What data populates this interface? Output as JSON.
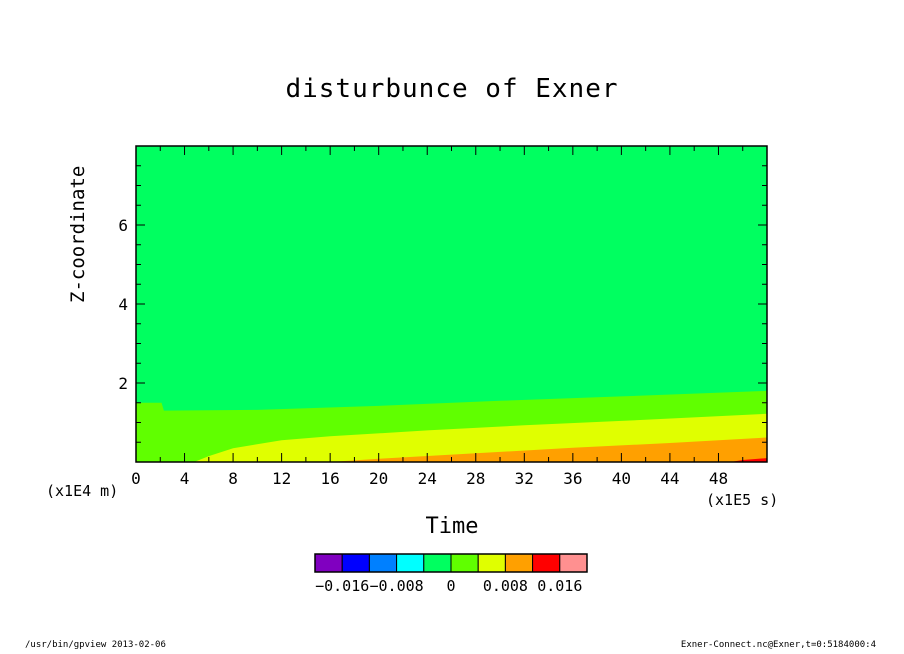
{
  "chart_data": {
    "type": "heatmap",
    "title": "disturbunce of Exner",
    "xlabel": "Time",
    "ylabel": "Z-coordinate",
    "x_scale_note": "(x1E5 s)",
    "y_scale_note": "(x1E4 m)",
    "xlim": [
      0,
      52
    ],
    "ylim": [
      0,
      8
    ],
    "x_ticks": [
      "0",
      "4",
      "8",
      "12",
      "16",
      "20",
      "24",
      "28",
      "32",
      "36",
      "40",
      "44",
      "48"
    ],
    "y_ticks": [
      "2",
      "4",
      "6"
    ],
    "colorbar": {
      "colors": [
        "#8000c0",
        "#0000ff",
        "#0080ff",
        "#00ffff",
        "#00ff60",
        "#60ff00",
        "#e0ff00",
        "#ffa000",
        "#ff0000",
        "#ff9090"
      ],
      "labels": [
        "-0.016",
        "-0.008",
        "0",
        "0.008",
        "0.016"
      ],
      "levels": [
        -0.02,
        -0.016,
        -0.012,
        -0.008,
        -0.004,
        0,
        0.004,
        0.008,
        0.012,
        0.016,
        0.02
      ]
    },
    "regions": [
      {
        "range": "[-0.004, 0)",
        "color": "#00ff60",
        "fill": "background and upper domain"
      },
      {
        "range": "[0, 0.004)",
        "color": "#60ff00",
        "boundary": [
          [
            0,
            1.5
          ],
          [
            2.1,
            1.5
          ],
          [
            2.3,
            1.3
          ],
          [
            10,
            1.32
          ],
          [
            20,
            1.42
          ],
          [
            30,
            1.55
          ],
          [
            40,
            1.66
          ],
          [
            52,
            1.8
          ]
        ]
      },
      {
        "range": "[0.004, 0.008)",
        "color": "#e0ff00",
        "boundary": [
          [
            4.8,
            0
          ],
          [
            6,
            0.15
          ],
          [
            8,
            0.35
          ],
          [
            12,
            0.55
          ],
          [
            16,
            0.65
          ],
          [
            24,
            0.8
          ],
          [
            32,
            0.93
          ],
          [
            40,
            1.04
          ],
          [
            52,
            1.22
          ]
        ]
      },
      {
        "range": "[0.008, 0.012)",
        "color": "#ffa000",
        "boundary": [
          [
            16,
            0
          ],
          [
            20,
            0.08
          ],
          [
            28,
            0.22
          ],
          [
            36,
            0.36
          ],
          [
            44,
            0.48
          ],
          [
            52,
            0.62
          ]
        ]
      },
      {
        "range": "[0.012, 0.016)",
        "color": "#ff0000",
        "boundary": [
          [
            49,
            0
          ],
          [
            50,
            0.05
          ],
          [
            52,
            0.1
          ]
        ]
      }
    ],
    "grid": false,
    "legend": "colorbar at bottom center"
  },
  "footer": {
    "left": "/usr/bin/gpview   2013-02-06",
    "right": "Exner-Connect.nc@Exner,t=0:5184000:4"
  }
}
